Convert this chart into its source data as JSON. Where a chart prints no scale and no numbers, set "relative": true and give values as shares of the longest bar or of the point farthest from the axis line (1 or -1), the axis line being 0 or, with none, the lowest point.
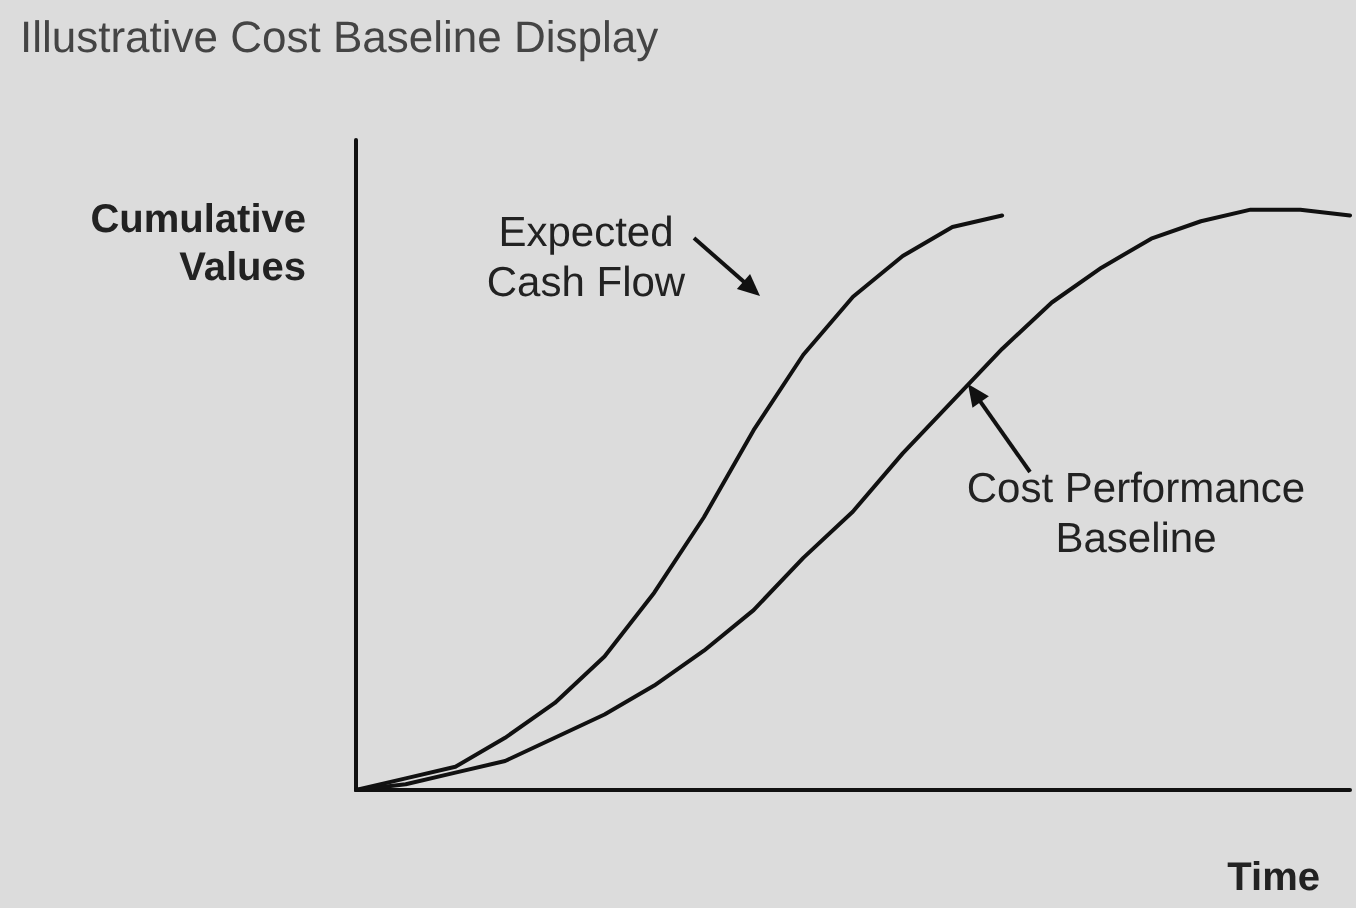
{
  "chart_data": {
    "type": "line",
    "title": "Illustrative Cost Baseline Display",
    "xlabel": "Time",
    "ylabel": "Cumulative Values",
    "relative": true,
    "annotations": [
      "Expected Cash Flow",
      "Cost Performance Baseline"
    ],
    "grid": false,
    "marker": "none",
    "line_style": "solid",
    "categories": [
      null,
      null,
      null,
      null,
      null,
      null,
      null,
      null,
      null,
      null,
      null,
      null,
      null,
      null,
      null,
      null,
      null,
      null,
      null,
      null,
      null
    ],
    "series": [
      {
        "color": "#111111",
        "values": [
          0,
          0.02,
          0.04,
          0.09,
          0.15,
          0.23,
          0.34,
          0.47,
          0.62,
          0.75,
          0.85,
          0.92,
          0.97,
          0.99,
          null,
          null,
          null,
          null,
          null,
          null,
          null
        ]
      },
      {
        "color": "#111111",
        "values": [
          0,
          0.01,
          0.03,
          0.05,
          0.09,
          0.13,
          0.18,
          0.24,
          0.31,
          0.4,
          0.48,
          0.58,
          0.67,
          0.76,
          0.84,
          0.9,
          0.95,
          0.98,
          1,
          1,
          0.99
        ]
      }
    ]
  }
}
